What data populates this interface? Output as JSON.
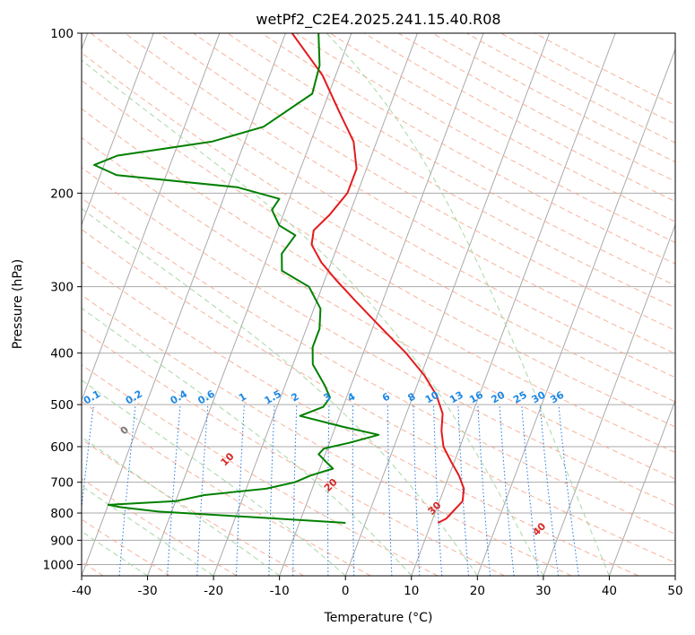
{
  "chart_data": {
    "type": "line",
    "subtype": "skew-t-log-p",
    "title": "wetPf2_C2E4.2025.241.15.40.R08",
    "xlabel": "Temperature (°C)",
    "ylabel": "Pressure (hPa)",
    "xlim": [
      -40,
      50
    ],
    "ylim": [
      1050,
      100
    ],
    "y_scale": "log",
    "grid": true,
    "x_ticks": [
      -40,
      -30,
      -20,
      -10,
      0,
      10,
      20,
      30,
      40,
      50
    ],
    "y_ticks": [
      100,
      200,
      300,
      400,
      500,
      600,
      700,
      800,
      900,
      1000
    ],
    "isotherms_spacing": 10,
    "dry_adiabats": [
      -100,
      -90,
      -80,
      -70,
      -60,
      -50,
      -40,
      -30,
      -20,
      -10,
      0,
      10,
      20,
      30,
      40
    ],
    "mixing_ratio_labels": [
      "0.1",
      "0.2",
      "0.4",
      "0.6",
      "1",
      "1.5",
      "2",
      "3",
      "4",
      "6",
      "8",
      "10",
      "13",
      "16",
      "20",
      "25",
      "30",
      "36"
    ],
    "mixing_ratio_values": [
      0.1,
      0.2,
      0.4,
      0.6,
      1,
      1.5,
      2,
      3,
      4,
      6,
      8,
      10,
      13,
      16,
      20,
      25,
      30,
      36
    ],
    "moist_adiabats": [
      -30,
      -20,
      -10,
      0,
      10,
      20,
      30,
      40
    ],
    "colors": {
      "temperature": "#e31a1c",
      "dewpoint": "#008000",
      "isotherm": "#aaaaaa",
      "dry_adiabat": "#f5a58a",
      "moist_adiabat": "#9fd49f",
      "mixing_ratio": "#1f77e4",
      "dry_label": "#1f5f9f",
      "mix_label": "#1e88e5",
      "hot_label": "#d62728"
    },
    "series": [
      {
        "name": "Temperature",
        "values": [
          {
            "p": 835,
            "t": 11.0
          },
          {
            "p": 820,
            "t": 12.0
          },
          {
            "p": 800,
            "t": 12.5
          },
          {
            "p": 760,
            "t": 13.5
          },
          {
            "p": 720,
            "t": 13.0
          },
          {
            "p": 680,
            "t": 11.5
          },
          {
            "p": 640,
            "t": 9.5
          },
          {
            "p": 600,
            "t": 7.5
          },
          {
            "p": 560,
            "t": 6.3
          },
          {
            "p": 520,
            "t": 5.5
          },
          {
            "p": 480,
            "t": 3.5
          },
          {
            "p": 440,
            "t": 0.5
          },
          {
            "p": 400,
            "t": -3.5
          },
          {
            "p": 360,
            "t": -8.5
          },
          {
            "p": 320,
            "t": -14.0
          },
          {
            "p": 290,
            "t": -18.5
          },
          {
            "p": 270,
            "t": -21.5
          },
          {
            "p": 250,
            "t": -24.0
          },
          {
            "p": 235,
            "t": -24.5
          },
          {
            "p": 220,
            "t": -23.0
          },
          {
            "p": 200,
            "t": -21.5
          },
          {
            "p": 180,
            "t": -21.5
          },
          {
            "p": 160,
            "t": -23.5
          },
          {
            "p": 140,
            "t": -27.5
          },
          {
            "p": 120,
            "t": -32.0
          },
          {
            "p": 100,
            "t": -39.0
          }
        ]
      },
      {
        "name": "Dewpoint",
        "values": [
          {
            "p": 835,
            "t": -3.0
          },
          {
            "p": 815,
            "t": -17.0
          },
          {
            "p": 795,
            "t": -32.0
          },
          {
            "p": 780,
            "t": -38.0
          },
          {
            "p": 772,
            "t": -40.0
          },
          {
            "p": 760,
            "t": -30.0
          },
          {
            "p": 740,
            "t": -26.0
          },
          {
            "p": 720,
            "t": -17.0
          },
          {
            "p": 700,
            "t": -13.0
          },
          {
            "p": 680,
            "t": -11.0
          },
          {
            "p": 660,
            "t": -8.0
          },
          {
            "p": 640,
            "t": -9.5
          },
          {
            "p": 620,
            "t": -11.0
          },
          {
            "p": 605,
            "t": -10.5
          },
          {
            "p": 590,
            "t": -7.0
          },
          {
            "p": 570,
            "t": -3.0
          },
          {
            "p": 550,
            "t": -9.0
          },
          {
            "p": 525,
            "t": -16.0
          },
          {
            "p": 505,
            "t": -13.0
          },
          {
            "p": 485,
            "t": -12.5
          },
          {
            "p": 460,
            "t": -14.0
          },
          {
            "p": 420,
            "t": -17.0
          },
          {
            "p": 390,
            "t": -18.0
          },
          {
            "p": 360,
            "t": -18.0
          },
          {
            "p": 330,
            "t": -19.0
          },
          {
            "p": 300,
            "t": -22.0
          },
          {
            "p": 280,
            "t": -27.0
          },
          {
            "p": 260,
            "t": -28.0
          },
          {
            "p": 240,
            "t": -27.0
          },
          {
            "p": 230,
            "t": -30.0
          },
          {
            "p": 215,
            "t": -32.0
          },
          {
            "p": 205,
            "t": -31.5
          },
          {
            "p": 195,
            "t": -38.5
          },
          {
            "p": 185,
            "t": -57.5
          },
          {
            "p": 177,
            "t": -61.5
          },
          {
            "p": 170,
            "t": -58.5
          },
          {
            "p": 160,
            "t": -45.0
          },
          {
            "p": 150,
            "t": -38.0
          },
          {
            "p": 130,
            "t": -32.5
          },
          {
            "p": 115,
            "t": -33.0
          },
          {
            "p": 100,
            "t": -35.0
          }
        ]
      }
    ]
  }
}
